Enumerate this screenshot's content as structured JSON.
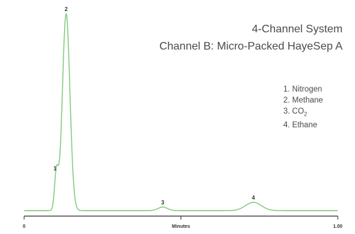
{
  "chart_data": {
    "type": "line",
    "title": "4-Channel System",
    "subtitle": "Channel B: Micro-Packed HayeSep A",
    "xlabel": "Minutes",
    "ylabel": "",
    "xlim": [
      0,
      1.0
    ],
    "x_tick_labels": [
      "0",
      "1.00"
    ],
    "x_ticks": [
      0,
      0.5,
      1.0
    ],
    "grid": false,
    "line_color": "#7fc97f",
    "axis_color": "#333333",
    "peaks": [
      {
        "label": "1",
        "x": 0.103,
        "height": 0.19,
        "width": 0.006
      },
      {
        "label": "2",
        "x": 0.134,
        "height": 1.0,
        "width": 0.012
      },
      {
        "label": "3",
        "x": 0.442,
        "height": 0.018,
        "width": 0.015
      },
      {
        "label": "4",
        "x": 0.731,
        "height": 0.042,
        "width": 0.025
      }
    ],
    "legend": [
      {
        "num": "1.",
        "name": "Nitrogen"
      },
      {
        "num": "2.",
        "name": "Methane"
      },
      {
        "num": "3.",
        "name": "CO",
        "sub": "2"
      },
      {
        "num": "4.",
        "name": "Ethane"
      }
    ]
  }
}
